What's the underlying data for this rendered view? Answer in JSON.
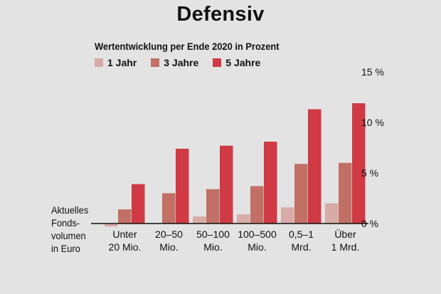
{
  "chart_data": {
    "type": "bar",
    "title": "Defensiv",
    "subtitle": "Wertentwicklung per Ende 2020 in Prozent",
    "xlabel": "Aktuelles Fonds-volumen in Euro",
    "xlabel_lines": [
      "Aktuelles",
      "Fonds-",
      "volumen",
      "in Euro"
    ],
    "ylabel": "",
    "ylim": [
      0,
      15
    ],
    "yticks": [
      0,
      5,
      10,
      15
    ],
    "ytick_labels": [
      "0 %",
      "5 %",
      "10 %",
      "15 %"
    ],
    "categories": [
      "Unter 20 Mio.",
      "20–50 Mio.",
      "50–100 Mio.",
      "100–500 Mio.",
      "0,5–1 Mrd.",
      "Über 1 Mrd."
    ],
    "category_lines": [
      [
        "Unter",
        "20 Mio."
      ],
      [
        "20–50",
        "Mio."
      ],
      [
        "50–100",
        "Mio."
      ],
      [
        "100–500",
        "Mio."
      ],
      [
        "0,5–1",
        "Mrd."
      ],
      [
        "Über",
        "1 Mrd."
      ]
    ],
    "series": [
      {
        "name": "1 Jahr",
        "color": "#d8aba6",
        "values": [
          -0.3,
          0.0,
          0.7,
          0.9,
          1.6,
          2.0
        ]
      },
      {
        "name": "3 Jahre",
        "color": "#c27066",
        "values": [
          1.4,
          3.0,
          3.4,
          3.7,
          5.9,
          6.0
        ]
      },
      {
        "name": "5 Jahre",
        "color": "#cf3a44",
        "values": [
          3.9,
          7.4,
          7.7,
          8.1,
          11.3,
          11.9
        ]
      }
    ],
    "legend_position": "top-left",
    "grid": false
  }
}
